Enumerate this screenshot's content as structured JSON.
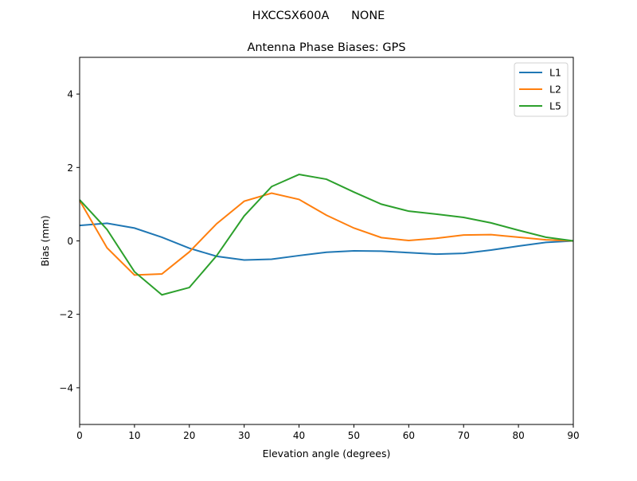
{
  "suptitle": "HXCCSX600A      NONE",
  "chart_data": {
    "type": "line",
    "title": "Antenna Phase Biases: GPS",
    "xlabel": "Elevation angle (degrees)",
    "ylabel": "Bias (mm)",
    "xlim": [
      0,
      90
    ],
    "ylim": [
      -5,
      5
    ],
    "xticks": [
      0,
      10,
      20,
      30,
      40,
      50,
      60,
      70,
      80,
      90
    ],
    "xtick_labels": [
      "0",
      "10",
      "20",
      "30",
      "40",
      "50",
      "60",
      "70",
      "80",
      "90"
    ],
    "yticks": [
      -4,
      -2,
      0,
      2,
      4
    ],
    "ytick_labels": [
      "−4",
      "−2",
      "0",
      "2",
      "4"
    ],
    "grid": false,
    "legend_placement": "top-right",
    "x": [
      0,
      5,
      10,
      15,
      20,
      25,
      30,
      35,
      40,
      45,
      50,
      55,
      60,
      65,
      70,
      75,
      80,
      85,
      90
    ],
    "series": [
      {
        "name": "L1",
        "color": "#1f77b4",
        "values": [
          0.42,
          0.48,
          0.35,
          0.1,
          -0.2,
          -0.42,
          -0.52,
          -0.5,
          -0.4,
          -0.31,
          -0.27,
          -0.28,
          -0.32,
          -0.36,
          -0.34,
          -0.25,
          -0.14,
          -0.04,
          0
        ]
      },
      {
        "name": "L2",
        "color": "#ff7f0e",
        "values": [
          1.1,
          -0.19,
          -0.93,
          -0.9,
          -0.3,
          0.47,
          1.08,
          1.3,
          1.13,
          0.7,
          0.35,
          0.09,
          0.01,
          0.07,
          0.16,
          0.17,
          0.1,
          0.03,
          0
        ]
      },
      {
        "name": "L5",
        "color": "#2ca02c",
        "values": [
          1.12,
          0.31,
          -0.84,
          -1.47,
          -1.27,
          -0.4,
          0.68,
          1.48,
          1.81,
          1.68,
          1.33,
          1.0,
          0.81,
          0.73,
          0.64,
          0.49,
          0.29,
          0.1,
          0
        ]
      }
    ]
  }
}
